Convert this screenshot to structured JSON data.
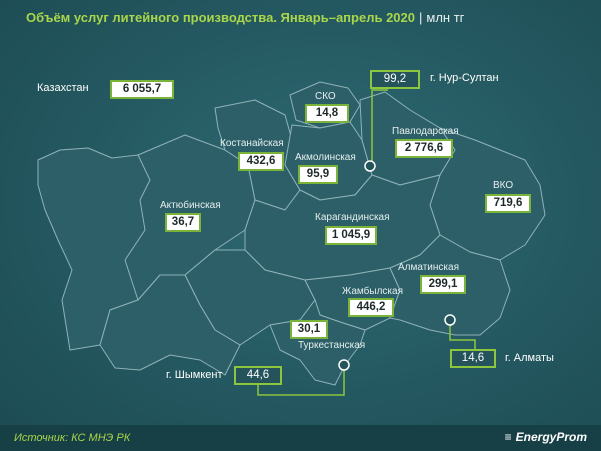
{
  "header": {
    "title": "Объём услуг литейного производства. Январь–апрель 2020",
    "separator": "|",
    "unit": "млн тг"
  },
  "total": {
    "label": "Казахстан",
    "value": "6 055,7"
  },
  "regions": [
    {
      "name": "СКО",
      "value": "14,8"
    },
    {
      "name": "Костанайская",
      "value": "432,6"
    },
    {
      "name": "Акмолинская",
      "value": "95,9"
    },
    {
      "name": "Павлодарская",
      "value": "2 776,6"
    },
    {
      "name": "Актюбинская",
      "value": "36,7"
    },
    {
      "name": "ВКО",
      "value": "719,6"
    },
    {
      "name": "Карагандинская",
      "value": "1 045,9"
    },
    {
      "name": "Алматинская",
      "value": "299,1"
    },
    {
      "name": "Жамбылская",
      "value": "446,2"
    },
    {
      "name": "Туркестанская",
      "value": "30,1"
    }
  ],
  "cities": [
    {
      "name": "г. Нур-Султан",
      "value": "99,2"
    },
    {
      "name": "г. Шымкент",
      "value": "44,6"
    },
    {
      "name": "г. Алматы",
      "value": "14,6"
    }
  ],
  "footer": {
    "source": "Источник: КС МНЭ РК",
    "brand": "EnergyProm"
  },
  "colors": {
    "background": "#245860",
    "region_fill": "#2c5f68",
    "region_stroke": "#8fb2b8",
    "accent_green": "#8cc63f",
    "title_green": "#a9d64a"
  }
}
